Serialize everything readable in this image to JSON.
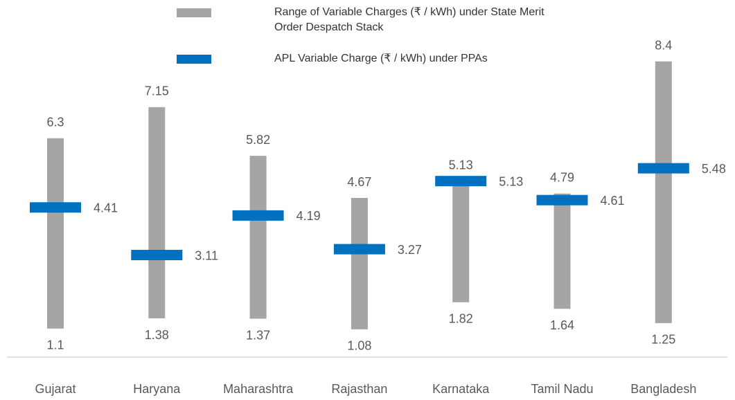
{
  "chart_data": {
    "type": "range_marker",
    "categories": [
      "Gujarat",
      "Haryana",
      "Maharashtra",
      "Rajasthan",
      "Karnataka",
      "Tamil Nadu",
      "Bangladesh"
    ],
    "series": [
      {
        "name": "Range of Variable Charges (₹ / kWh) under State Merit Order Despatch Stack",
        "color": "#a5a5a5",
        "low": [
          1.1,
          1.38,
          1.37,
          1.08,
          1.82,
          1.64,
          1.25
        ],
        "high": [
          6.3,
          7.15,
          5.82,
          4.67,
          5.13,
          4.79,
          8.4
        ]
      },
      {
        "name": "APL Variable Charge (₹ / kWh) under PPAs",
        "color": "#0070c0",
        "values": [
          4.41,
          3.11,
          4.19,
          3.27,
          5.13,
          4.61,
          5.48
        ]
      }
    ],
    "ylim": [
      0,
      9
    ]
  }
}
